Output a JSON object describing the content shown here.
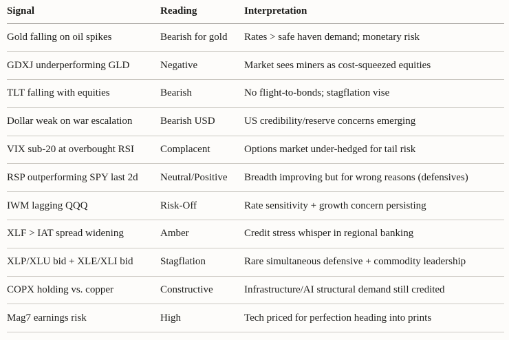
{
  "page": {
    "background_color": "#fdfcfa",
    "text_color": "#1d1d1b",
    "header_rule_color": "#8e8b86",
    "row_rule_color": "#cbc8c2"
  },
  "table": {
    "columns": [
      {
        "key": "signal",
        "label": "Signal"
      },
      {
        "key": "reading",
        "label": "Reading"
      },
      {
        "key": "interpretation",
        "label": "Interpretation"
      }
    ],
    "rows": [
      {
        "signal": "Gold falling on oil spikes",
        "reading": "Bearish for gold",
        "interpretation": "Rates > safe haven demand; monetary risk"
      },
      {
        "signal": "GDXJ underperforming GLD",
        "reading": "Negative",
        "interpretation": "Market sees miners as cost-squeezed equities"
      },
      {
        "signal": "TLT falling with equities",
        "reading": "Bearish",
        "interpretation": "No flight-to-bonds; stagflation vise"
      },
      {
        "signal": "Dollar weak on war escalation",
        "reading": "Bearish USD",
        "interpretation": "US credibility/reserve concerns emerging"
      },
      {
        "signal": "VIX sub-20 at overbought RSI",
        "reading": "Complacent",
        "interpretation": "Options market under-hedged for tail risk"
      },
      {
        "signal": "RSP outperforming SPY last 2d",
        "reading": "Neutral/Positive",
        "interpretation": "Breadth improving but for wrong reasons (defensives)"
      },
      {
        "signal": "IWM lagging QQQ",
        "reading": "Risk-Off",
        "interpretation": "Rate sensitivity + growth concern persisting"
      },
      {
        "signal": "XLF > IAT spread widening",
        "reading": "Amber",
        "interpretation": "Credit stress whisper in regional banking"
      },
      {
        "signal": "XLP/XLU bid + XLE/XLI bid",
        "reading": "Stagflation",
        "interpretation": "Rare simultaneous defensive + commodity leadership"
      },
      {
        "signal": "COPX holding vs. copper",
        "reading": "Constructive",
        "interpretation": "Infrastructure/AI structural demand still credited"
      },
      {
        "signal": "Mag7 earnings risk",
        "reading": "High",
        "interpretation": "Tech priced for perfection heading into prints"
      }
    ]
  }
}
